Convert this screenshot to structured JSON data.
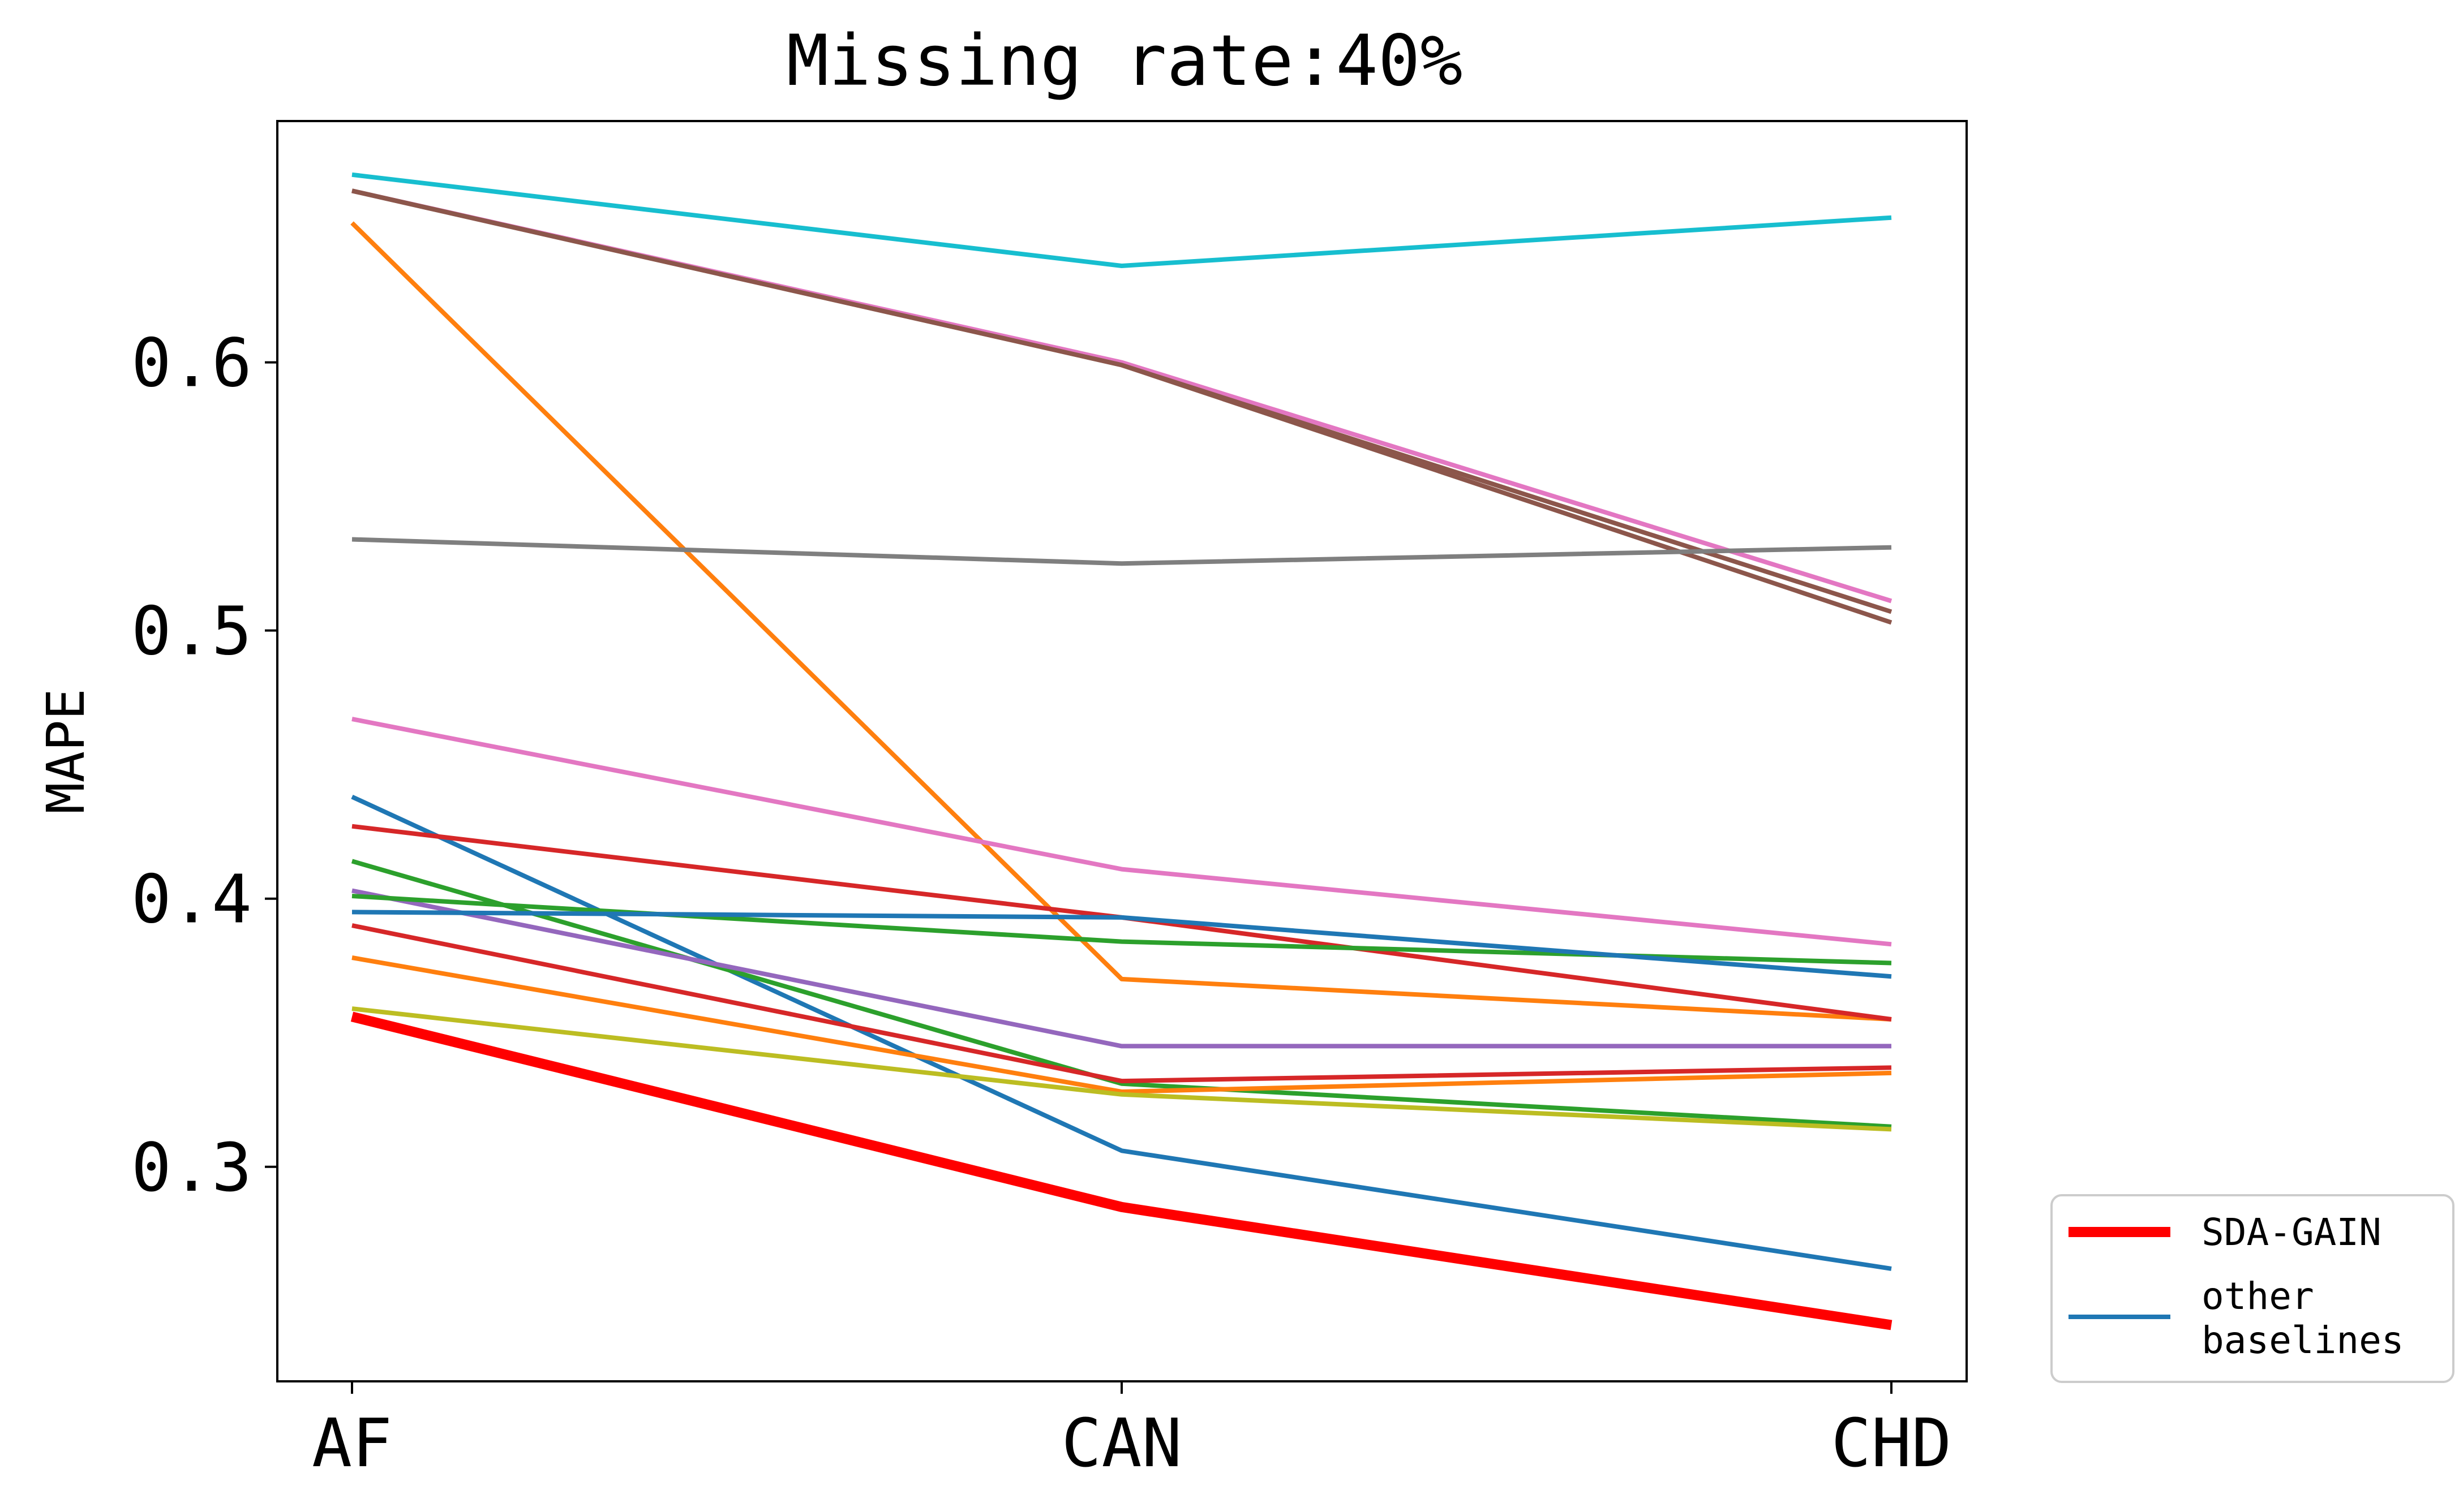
{
  "chart_data": {
    "type": "line",
    "title": "Missing rate:40%",
    "xlabel": "",
    "ylabel": "MAPE",
    "categories": [
      "AF",
      "CAN",
      "CHD"
    ],
    "yticks": [
      "0.3",
      "0.4",
      "0.5",
      "0.6"
    ],
    "ytick_values": [
      0.3,
      0.4,
      0.5,
      0.6
    ],
    "ylim": [
      0.22,
      0.69
    ],
    "grid": false,
    "legend": {
      "placement": "outside-bottom-right",
      "entries": [
        {
          "label": "SDA-GAIN",
          "color": "#ff0000"
        },
        {
          "label": "other\nbaselines",
          "color": "#1f77b4"
        }
      ]
    },
    "series": [
      {
        "name": "SDA-GAIN",
        "values": [
          0.356,
          0.285,
          0.241
        ],
        "color": "#ff0000",
        "highlight": true
      },
      {
        "values": [
          0.67,
          0.636,
          0.654
        ],
        "color": "#17becf"
      },
      {
        "values": [
          0.664,
          0.6,
          0.511
        ],
        "color": "#e377c2"
      },
      {
        "values": [
          0.664,
          0.599,
          0.507
        ],
        "color": "#8c564b"
      },
      {
        "values": [
          0.664,
          0.599,
          0.503
        ],
        "color": "#8c564b"
      },
      {
        "values": [
          0.652,
          0.37,
          0.355
        ],
        "color": "#ff7f0e"
      },
      {
        "values": [
          0.534,
          0.525,
          0.531
        ],
        "color": "#7f7f7f"
      },
      {
        "values": [
          0.467,
          0.411,
          0.383
        ],
        "color": "#e377c2"
      },
      {
        "values": [
          0.438,
          0.306,
          0.262
        ],
        "color": "#1f77b4"
      },
      {
        "values": [
          0.427,
          0.393,
          0.355
        ],
        "color": "#d62728"
      },
      {
        "values": [
          0.414,
          0.331,
          0.315
        ],
        "color": "#2ca02c"
      },
      {
        "values": [
          0.403,
          0.345,
          0.345
        ],
        "color": "#9467bd"
      },
      {
        "values": [
          0.401,
          0.384,
          0.376
        ],
        "color": "#2ca02c"
      },
      {
        "values": [
          0.395,
          0.393,
          0.371
        ],
        "color": "#1f77b4"
      },
      {
        "values": [
          0.39,
          0.332,
          0.337
        ],
        "color": "#d62728"
      },
      {
        "values": [
          0.378,
          0.328,
          0.335
        ],
        "color": "#ff7f0e"
      },
      {
        "values": [
          0.359,
          0.327,
          0.314
        ],
        "color": "#bcbd22"
      }
    ]
  }
}
